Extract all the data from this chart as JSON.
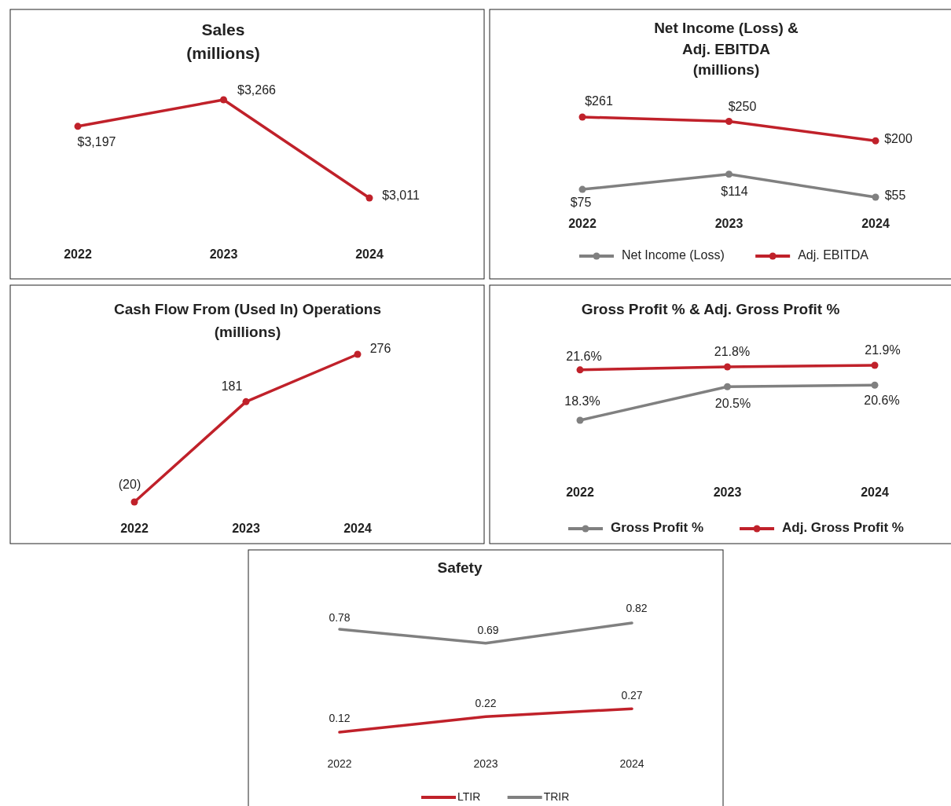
{
  "chart_data": [
    {
      "type": "line",
      "title": "Sales\n(millions)",
      "categories": [
        "2022",
        "2023",
        "2024"
      ],
      "tick_labels": "x",
      "legend": false,
      "marker": "circle",
      "series": [
        {
          "color": "#c0212a",
          "values": [
            3197,
            3266,
            3011
          ],
          "value_labels": [
            "$3,197",
            "$3,266",
            "$3,011"
          ]
        }
      ]
    },
    {
      "type": "line",
      "title": "Net Income (Loss) &\nAdj. EBITDA\n(millions)",
      "categories": [
        "2022",
        "2023",
        "2024"
      ],
      "tick_labels": "x",
      "legend": "bottom",
      "marker": "circle",
      "series": [
        {
          "name": "Net Income (Loss)",
          "color": "#808080",
          "values": [
            75,
            114,
            55
          ],
          "value_labels": [
            "$75",
            "$114",
            "$55"
          ]
        },
        {
          "name": "Adj. EBITDA",
          "color": "#c0212a",
          "values": [
            261,
            250,
            200
          ],
          "value_labels": [
            "$261",
            "$250",
            "$200"
          ]
        }
      ]
    },
    {
      "type": "line",
      "title": "Cash Flow From (Used In) Operations\n(millions)",
      "categories": [
        "2022",
        "2023",
        "2024"
      ],
      "tick_labels": "x",
      "legend": false,
      "marker": "circle",
      "series": [
        {
          "color": "#c0212a",
          "values": [
            -20,
            181,
            276
          ],
          "value_labels": [
            "(20)",
            "181",
            "276"
          ]
        }
      ]
    },
    {
      "type": "line",
      "title": "Gross Profit % & Adj. Gross Profit %",
      "categories": [
        "2022",
        "2023",
        "2024"
      ],
      "tick_labels": "x",
      "legend": "bottom",
      "marker": "circle",
      "series": [
        {
          "name": "Gross Profit %",
          "color": "#808080",
          "values": [
            18.3,
            20.5,
            20.6
          ],
          "value_labels": [
            "18.3%",
            "20.5%",
            "20.6%"
          ]
        },
        {
          "name": "Adj. Gross Profit %",
          "color": "#c0212a",
          "values": [
            21.6,
            21.8,
            21.9
          ],
          "value_labels": [
            "21.6%",
            "21.8%",
            "21.9%"
          ]
        }
      ]
    },
    {
      "type": "line",
      "title": "Safety",
      "categories": [
        "2022",
        "2023",
        "2024"
      ],
      "tick_labels": "x",
      "legend": "bottom",
      "marker": "none",
      "series": [
        {
          "name": "LTIR",
          "color": "#c0212a",
          "values": [
            0.12,
            0.22,
            0.27
          ],
          "value_labels": [
            "0.12",
            "0.22",
            "0.27"
          ]
        },
        {
          "name": "TRIR",
          "color": "#808080",
          "values": [
            0.78,
            0.69,
            0.82
          ],
          "value_labels": [
            "0.78",
            "0.69",
            "0.82"
          ]
        }
      ]
    }
  ]
}
